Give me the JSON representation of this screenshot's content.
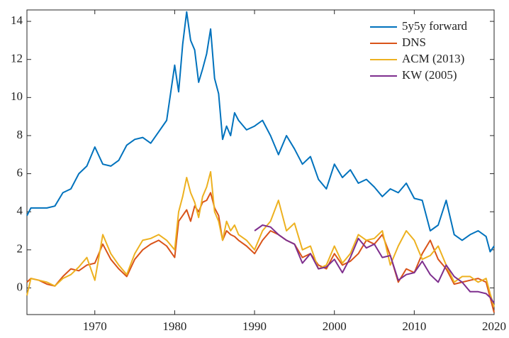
{
  "chart_data": {
    "type": "line",
    "x": [
      1961.5,
      1962,
      1963,
      1964,
      1965,
      1966,
      1967,
      1968,
      1969,
      1970,
      1971,
      1972,
      1973,
      1974,
      1975,
      1976,
      1977,
      1978,
      1979,
      1980,
      1980.5,
      1981,
      1981.5,
      1982,
      1982.5,
      1983,
      1983.5,
      1984,
      1984.5,
      1985,
      1985.5,
      1986,
      1986.5,
      1987,
      1987.5,
      1988,
      1989,
      1990,
      1991,
      1992,
      1993,
      1994,
      1995,
      1996,
      1997,
      1998,
      1999,
      2000,
      2001,
      2002,
      2003,
      2004,
      2005,
      2006,
      2007,
      2008,
      2009,
      2010,
      2011,
      2012,
      2013,
      2014,
      2015,
      2016,
      2017,
      2018,
      2019,
      2019.5,
      2020
    ],
    "series": [
      {
        "name": "5y5y forward",
        "color": "#0072bd",
        "values": [
          3.8,
          4.2,
          4.2,
          4.2,
          4.3,
          5.0,
          5.2,
          6.0,
          6.4,
          7.4,
          6.5,
          6.4,
          6.7,
          7.5,
          7.8,
          7.9,
          7.6,
          8.2,
          8.8,
          11.7,
          10.3,
          12.8,
          14.5,
          13.0,
          12.5,
          10.8,
          11.5,
          12.3,
          13.6,
          11.0,
          10.2,
          7.8,
          8.5,
          8.0,
          9.2,
          8.8,
          8.3,
          8.5,
          8.8,
          8.0,
          7.0,
          8.0,
          7.3,
          6.5,
          6.9,
          5.7,
          5.2,
          6.5,
          5.8,
          6.2,
          5.5,
          5.7,
          5.3,
          4.8,
          5.2,
          5.0,
          5.5,
          4.7,
          4.6,
          3.0,
          3.3,
          4.6,
          2.8,
          2.5,
          2.8,
          3.0,
          2.7,
          1.9,
          2.2
        ]
      },
      {
        "name": "DNS",
        "color": "#d95319",
        "values": [
          0.3,
          0.5,
          0.4,
          0.2,
          0.1,
          0.6,
          1.0,
          0.9,
          1.2,
          1.3,
          2.3,
          1.5,
          1.0,
          0.6,
          1.5,
          2.0,
          2.3,
          2.5,
          2.2,
          1.6,
          3.5,
          3.8,
          4.1,
          3.5,
          4.3,
          4.0,
          4.5,
          4.6,
          5.0,
          4.2,
          3.8,
          2.5,
          3.0,
          2.8,
          2.7,
          2.5,
          2.2,
          1.8,
          2.5,
          3.0,
          2.8,
          2.5,
          2.3,
          1.6,
          1.8,
          1.2,
          1.0,
          1.8,
          1.2,
          1.4,
          1.8,
          2.5,
          2.3,
          2.8,
          1.7,
          0.3,
          1.0,
          0.8,
          1.8,
          2.5,
          1.5,
          1.0,
          0.2,
          0.3,
          0.4,
          0.5,
          0.3,
          -0.5,
          -1.3
        ]
      },
      {
        "name": "ACM (2013)",
        "color": "#edb120",
        "values": [
          -0.4,
          0.5,
          0.4,
          0.3,
          0.1,
          0.5,
          0.7,
          1.1,
          1.6,
          0.4,
          2.8,
          1.8,
          1.2,
          0.7,
          1.8,
          2.5,
          2.6,
          2.8,
          2.5,
          2.0,
          4.0,
          4.8,
          5.8,
          5.0,
          4.5,
          3.7,
          4.8,
          5.3,
          6.1,
          4.0,
          3.5,
          2.5,
          3.5,
          3.0,
          3.3,
          2.8,
          2.5,
          2.0,
          3.0,
          3.5,
          4.6,
          3.0,
          3.4,
          2.0,
          2.2,
          1.0,
          1.2,
          2.2,
          1.3,
          1.8,
          2.8,
          2.5,
          2.6,
          3.0,
          1.2,
          2.2,
          3.0,
          2.5,
          1.5,
          1.7,
          2.2,
          1.2,
          0.3,
          0.6,
          0.6,
          0.3,
          0.5,
          -0.3,
          -1.0
        ]
      },
      {
        "name": "KW (2005)",
        "color": "#7e2f8e",
        "values": [
          null,
          null,
          null,
          null,
          null,
          null,
          null,
          null,
          null,
          null,
          null,
          null,
          null,
          null,
          null,
          null,
          null,
          null,
          null,
          null,
          null,
          null,
          null,
          null,
          null,
          null,
          null,
          null,
          null,
          null,
          null,
          null,
          null,
          null,
          null,
          null,
          null,
          3.0,
          3.3,
          3.2,
          2.8,
          2.5,
          2.3,
          1.3,
          1.8,
          1.0,
          1.1,
          1.5,
          0.8,
          1.6,
          2.6,
          2.1,
          2.3,
          1.6,
          1.7,
          0.4,
          0.7,
          0.8,
          1.4,
          0.7,
          0.3,
          1.2,
          0.6,
          0.3,
          -0.2,
          -0.2,
          -0.3,
          -0.5,
          -0.8
        ]
      }
    ],
    "xlim": [
      1961.5,
      2020
    ],
    "ylim": [
      -1.4,
      14.6
    ],
    "xticks": [
      1970,
      1980,
      1990,
      2000,
      2010,
      2020
    ],
    "yticks": [
      0,
      2,
      4,
      6,
      8,
      10,
      12,
      14
    ],
    "legend": "top-right"
  }
}
